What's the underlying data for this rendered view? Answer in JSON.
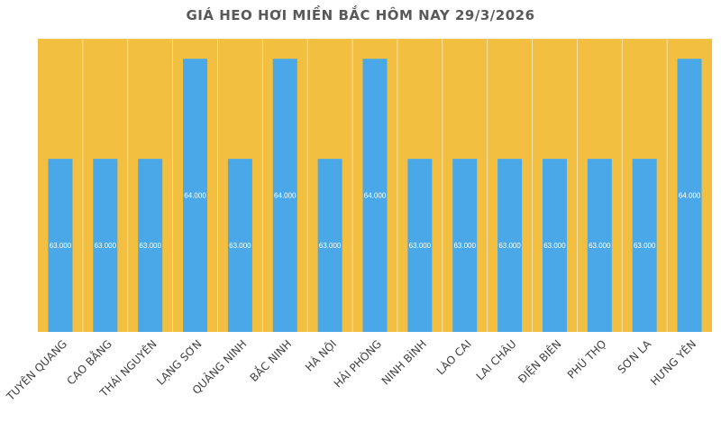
{
  "chart_data": {
    "type": "bar",
    "title": "GIÁ HEO HƠI MIỀN BẮC HÔM NAY 29/3/2026",
    "categories": [
      "TUYÊN QUANG",
      "CAO BẰNG",
      "THÁI NGUYÊN",
      "LẠNG SƠN",
      "QUẢNG NINH",
      "BẮC NINH",
      "HÀ NỘI",
      "HẢI PHÒNG",
      "NINH BÌNH",
      "LÀO CAI",
      "LAI CHÂU",
      "ĐIỆN BIÊN",
      "PHÚ THỌ",
      "SƠN LA",
      "HƯNG YÊN"
    ],
    "values": [
      63000,
      63000,
      63000,
      64000,
      63000,
      64000,
      63000,
      64000,
      63000,
      63000,
      63000,
      63000,
      63000,
      63000,
      64000
    ],
    "data_labels": [
      "63.000",
      "63.000",
      "63.000",
      "64.000",
      "63.000",
      "64.000",
      "63.000",
      "64.000",
      "63.000",
      "63.000",
      "63.000",
      "63.000",
      "63.000",
      "63.000",
      "64.000"
    ],
    "ylim": [
      61270,
      64200
    ],
    "grid": false,
    "legend": "none",
    "colors": {
      "plot_background": "#F2BF40",
      "bar": "#4AA8E8",
      "band_separator": "#FFFFFF",
      "label": "#FFFFFF"
    }
  }
}
